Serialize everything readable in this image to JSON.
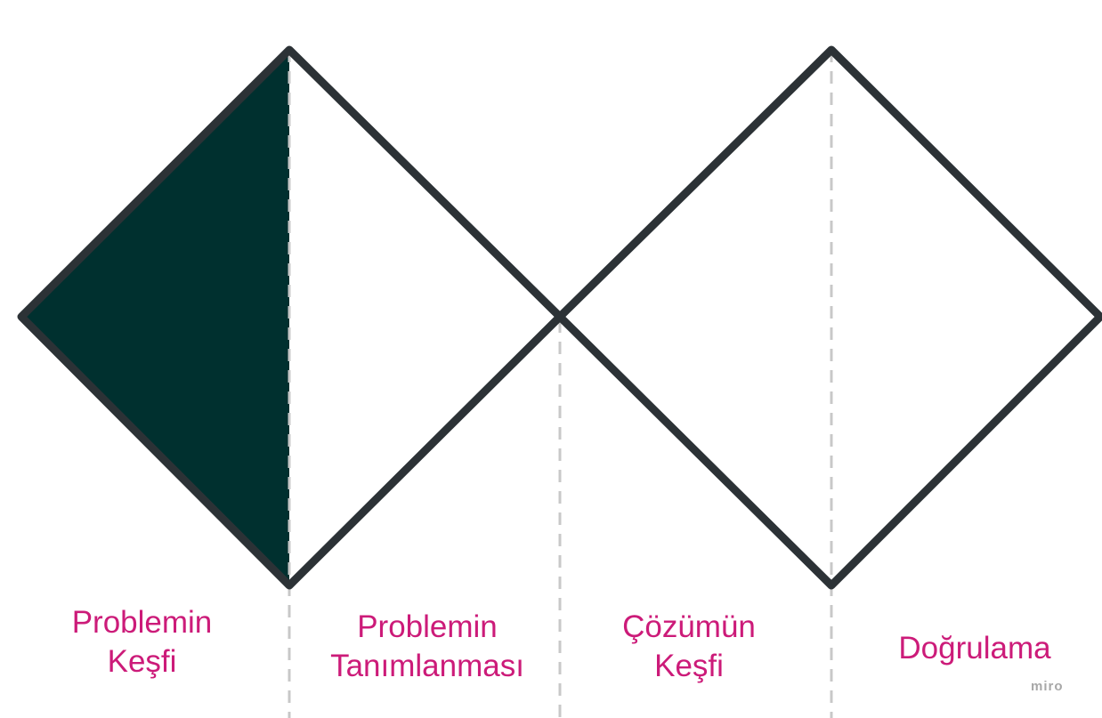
{
  "colors": {
    "outline": "#2c3236",
    "fill": "#00302f",
    "divider": "#c8c8c8",
    "label": "#cc1b79",
    "watermark": "#a8a8a8"
  },
  "stages": [
    {
      "line1": "Problemin",
      "line2": "Keşfi",
      "active": true
    },
    {
      "line1": "Problemin",
      "line2": "Tanımlanması",
      "active": false
    },
    {
      "line1": "Çözümün",
      "line2": "Keşfi",
      "active": false
    },
    {
      "line1": "Doğrulama",
      "line2": "",
      "active": false
    }
  ],
  "watermark": "miro"
}
